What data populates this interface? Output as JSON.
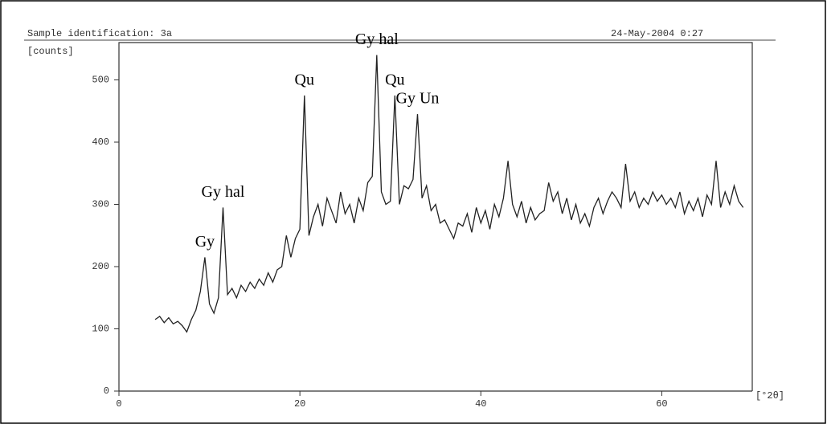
{
  "chart_data": {
    "type": "line",
    "title": "Sample identification: 3a",
    "subtitle": "24-May-2004  0:27",
    "y_label": "[counts]",
    "x_label": "[°2θ]",
    "color": "#222222",
    "xlim": [
      0,
      70
    ],
    "ylim": [
      0,
      560
    ],
    "xticks": [
      0,
      20,
      40,
      60
    ],
    "yticks": [
      0,
      100,
      200,
      300,
      400,
      500
    ],
    "x": [
      4,
      4.5,
      5,
      5.5,
      6,
      6.5,
      7,
      7.5,
      8,
      8.5,
      9,
      9.5,
      10,
      10.5,
      11,
      11.5,
      12,
      12.5,
      13,
      13.5,
      14,
      14.5,
      15,
      15.5,
      16,
      16.5,
      17,
      17.5,
      18,
      18.5,
      19,
      19.5,
      20,
      20.5,
      21,
      21.5,
      22,
      22.5,
      23,
      23.5,
      24,
      24.5,
      25,
      25.5,
      26,
      26.5,
      27,
      27.5,
      28,
      28.5,
      29,
      29.5,
      30,
      30.5,
      31,
      31.5,
      32,
      32.5,
      33,
      33.5,
      34,
      34.5,
      35,
      35.5,
      36,
      36.5,
      37,
      37.5,
      38,
      38.5,
      39,
      39.5,
      40,
      40.5,
      41,
      41.5,
      42,
      42.5,
      43,
      43.5,
      44,
      44.5,
      45,
      45.5,
      46,
      46.5,
      47,
      47.5,
      48,
      48.5,
      49,
      49.5,
      50,
      50.5,
      51,
      51.5,
      52,
      52.5,
      53,
      53.5,
      54,
      54.5,
      55,
      55.5,
      56,
      56.5,
      57,
      57.5,
      58,
      58.5,
      59,
      59.5,
      60,
      60.5,
      61,
      61.5,
      62,
      62.5,
      63,
      63.5,
      64,
      64.5,
      65,
      65.5,
      66,
      66.5,
      67,
      67.5,
      68,
      68.5,
      69
    ],
    "values": [
      115,
      120,
      110,
      118,
      108,
      112,
      105,
      95,
      115,
      130,
      160,
      215,
      140,
      125,
      150,
      295,
      155,
      165,
      150,
      170,
      160,
      175,
      165,
      180,
      170,
      190,
      175,
      195,
      200,
      250,
      215,
      245,
      260,
      475,
      250,
      280,
      300,
      265,
      310,
      290,
      270,
      320,
      285,
      300,
      270,
      310,
      290,
      335,
      345,
      540,
      320,
      300,
      305,
      475,
      300,
      330,
      325,
      340,
      445,
      310,
      330,
      290,
      300,
      270,
      275,
      260,
      245,
      270,
      265,
      285,
      255,
      295,
      270,
      290,
      260,
      300,
      280,
      310,
      370,
      300,
      280,
      305,
      270,
      295,
      275,
      285,
      290,
      335,
      305,
      320,
      285,
      310,
      275,
      300,
      270,
      285,
      265,
      295,
      310,
      285,
      305,
      320,
      310,
      295,
      365,
      305,
      320,
      295,
      310,
      300,
      320,
      305,
      315,
      300,
      310,
      295,
      320,
      285,
      305,
      290,
      310,
      280,
      315,
      300,
      370,
      295,
      320,
      300,
      330,
      305,
      295
    ],
    "annotations": [
      {
        "text": "Gy",
        "x": 9.5
      },
      {
        "text": "Gy hal",
        "x": 11.5
      },
      {
        "text": "Qu",
        "x": 20.5
      },
      {
        "text": "Gy hal",
        "x": 28.5
      },
      {
        "text": "Qu",
        "x": 30.5
      },
      {
        "text": "Gy Un",
        "x": 33
      }
    ]
  }
}
